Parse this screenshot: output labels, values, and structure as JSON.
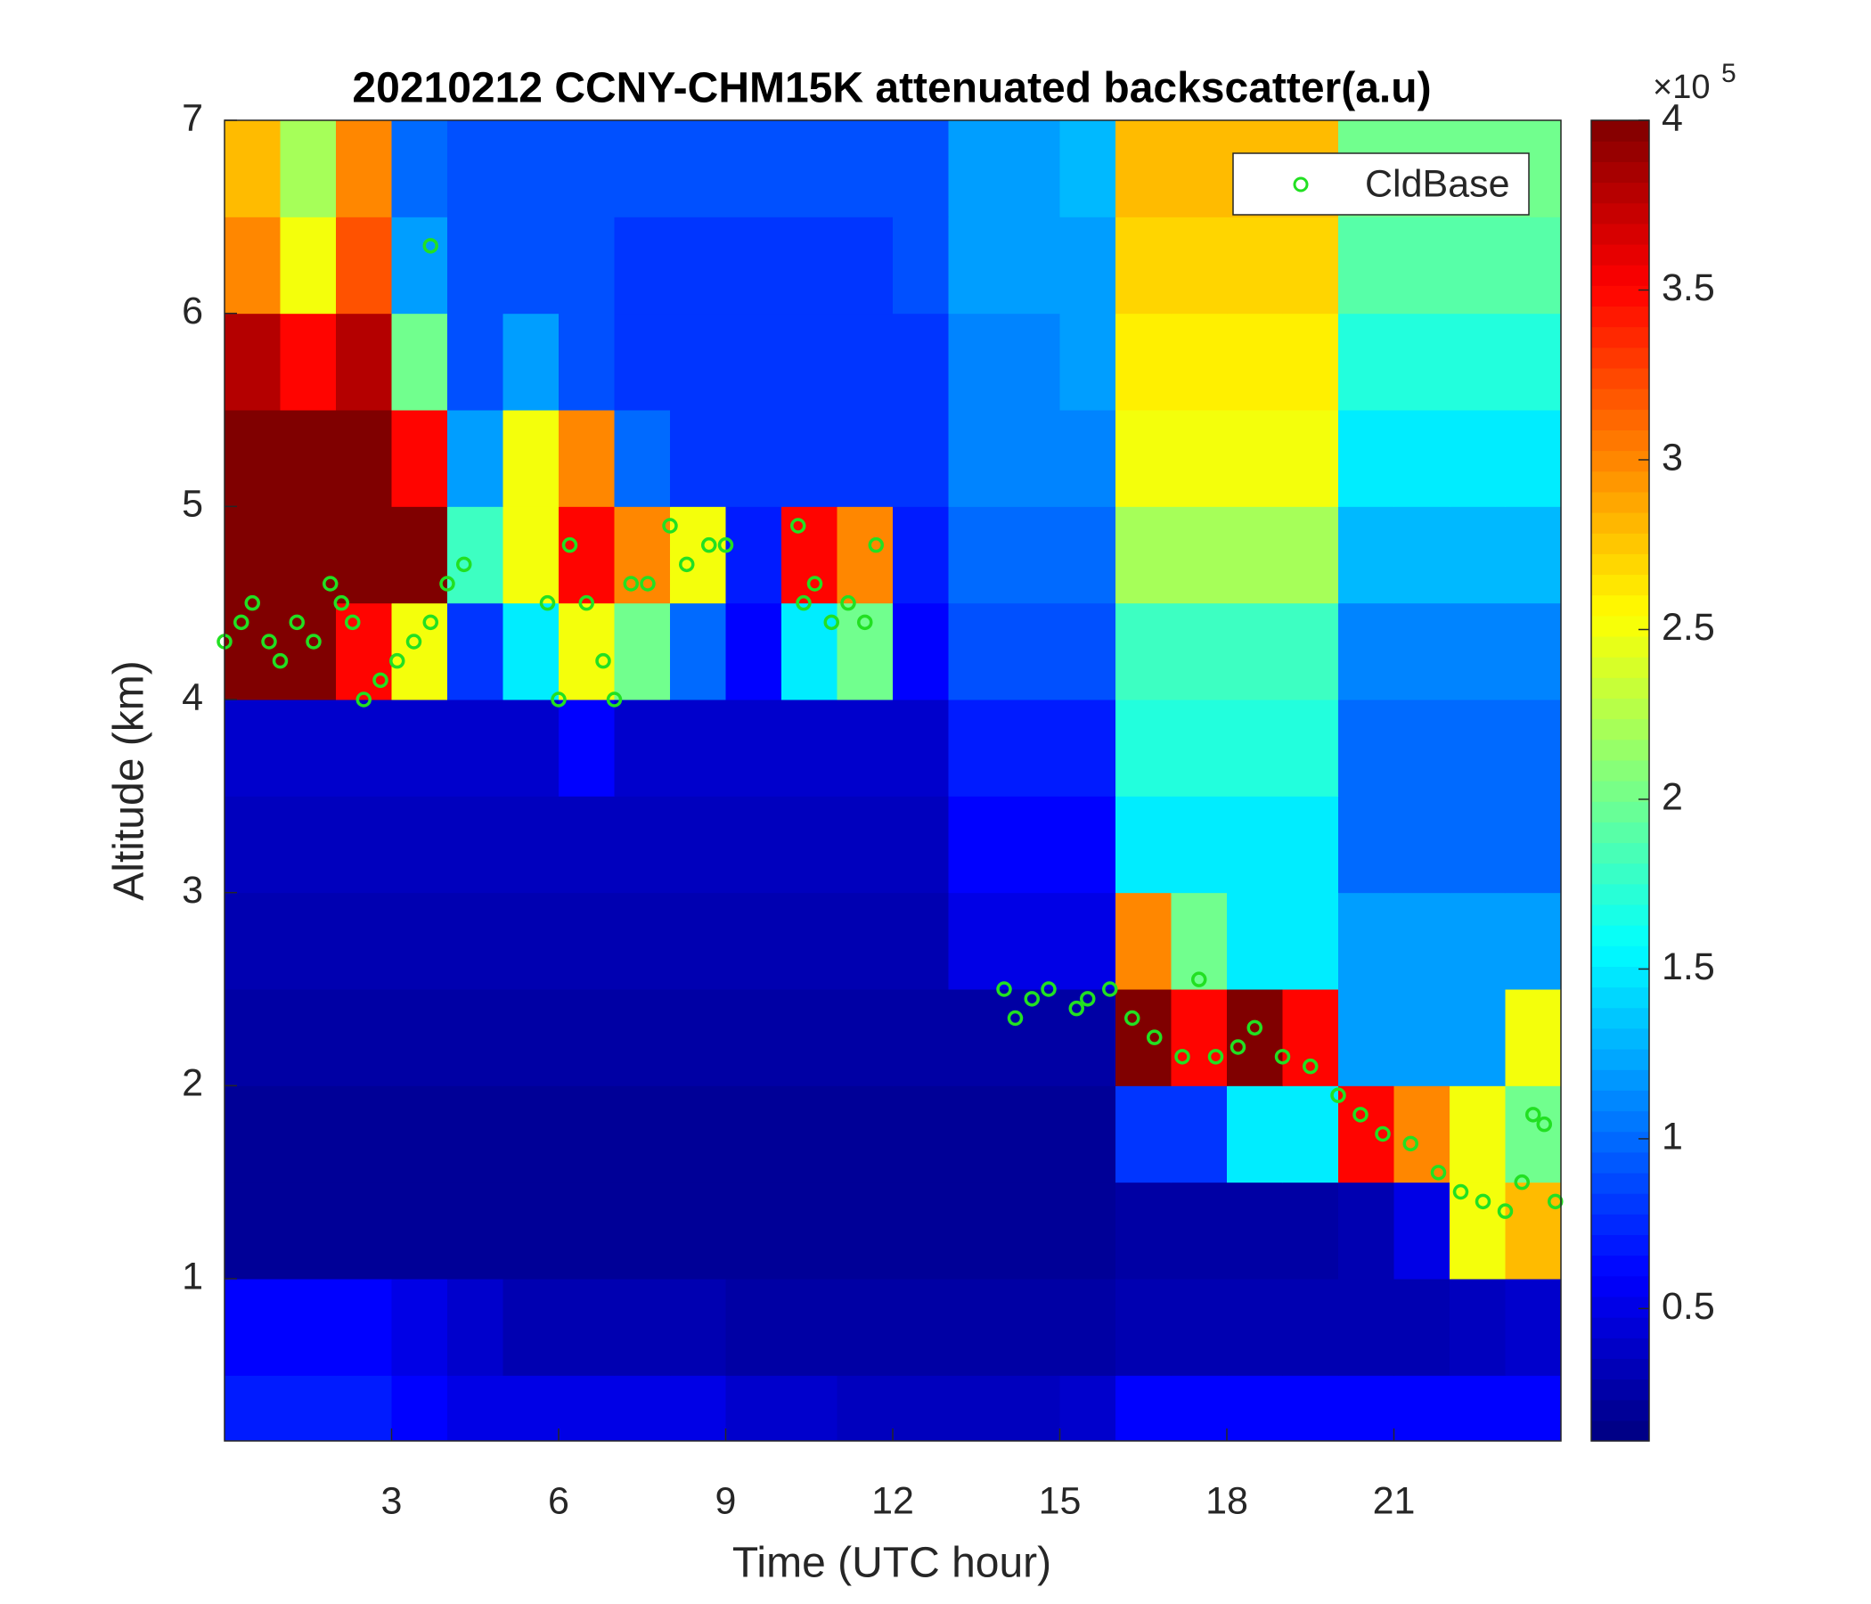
{
  "chart_data": {
    "type": "heatmap",
    "title": "20210212 CCNY-CHM15K attenuated backscatter(a.u)",
    "x_label": "Time (UTC hour)",
    "y_label": "Altitude (km)",
    "xlim": [
      0,
      24
    ],
    "ylim": [
      0.16,
      7
    ],
    "xticks": [
      3,
      6,
      9,
      12,
      15,
      18,
      21
    ],
    "yticks": [
      1,
      2,
      3,
      4,
      5,
      6,
      7
    ],
    "colormap": "jet",
    "clim": [
      0.11,
      4
    ],
    "cticks": [
      0.5,
      1,
      1.5,
      2,
      2.5,
      3,
      3.5,
      4
    ],
    "colorbar_multiplier": "×10",
    "colorbar_exponent": "5",
    "legend_position": "upper right",
    "x_edges": [
      0,
      1,
      2,
      3,
      4,
      5,
      6,
      7,
      8,
      9,
      10,
      11,
      12,
      13,
      14,
      15,
      16,
      17,
      18,
      19,
      20,
      21,
      22,
      23,
      24
    ],
    "y_edges": [
      0.16,
      0.5,
      1,
      1.5,
      2,
      2.5,
      3,
      3.5,
      4,
      4.5,
      5,
      5.5,
      6,
      6.5,
      7
    ],
    "z": [
      [
        0.7,
        0.7,
        0.7,
        0.6,
        0.5,
        0.5,
        0.5,
        0.5,
        0.5,
        0.4,
        0.4,
        0.35,
        0.35,
        0.35,
        0.35,
        0.4,
        0.6,
        0.6,
        0.6,
        0.6,
        0.6,
        0.6,
        0.6,
        0.6
      ],
      [
        0.6,
        0.6,
        0.6,
        0.5,
        0.4,
        0.3,
        0.3,
        0.3,
        0.3,
        0.25,
        0.25,
        0.25,
        0.25,
        0.25,
        0.25,
        0.25,
        0.3,
        0.3,
        0.3,
        0.3,
        0.3,
        0.3,
        0.35,
        0.4
      ],
      [
        0.2,
        0.2,
        0.2,
        0.2,
        0.2,
        0.2,
        0.2,
        0.2,
        0.2,
        0.2,
        0.2,
        0.2,
        0.2,
        0.2,
        0.2,
        0.2,
        0.25,
        0.25,
        0.25,
        0.25,
        0.3,
        0.5,
        2.5,
        2.8
      ],
      [
        0.2,
        0.2,
        0.2,
        0.2,
        0.2,
        0.2,
        0.2,
        0.2,
        0.2,
        0.2,
        0.2,
        0.2,
        0.2,
        0.2,
        0.2,
        0.2,
        0.8,
        0.8,
        1.5,
        1.5,
        3.5,
        3.0,
        2.5,
        2.0
      ],
      [
        0.25,
        0.25,
        0.25,
        0.25,
        0.25,
        0.25,
        0.25,
        0.25,
        0.25,
        0.25,
        0.25,
        0.25,
        0.25,
        0.25,
        0.25,
        0.25,
        4,
        3.5,
        4,
        3.5,
        1.2,
        1.2,
        1.2,
        2.5
      ],
      [
        0.3,
        0.3,
        0.3,
        0.3,
        0.3,
        0.3,
        0.3,
        0.3,
        0.3,
        0.3,
        0.3,
        0.3,
        0.3,
        0.5,
        0.5,
        0.5,
        3,
        2,
        1.5,
        1.5,
        1.2,
        1.2,
        1.2,
        1.2
      ],
      [
        0.35,
        0.35,
        0.35,
        0.35,
        0.35,
        0.35,
        0.35,
        0.35,
        0.35,
        0.35,
        0.35,
        0.35,
        0.35,
        0.6,
        0.6,
        0.6,
        1.5,
        1.5,
        1.5,
        1.5,
        1.0,
        1.0,
        1.0,
        1.0
      ],
      [
        0.4,
        0.4,
        0.4,
        0.4,
        0.4,
        0.4,
        0.6,
        0.4,
        0.4,
        0.4,
        0.4,
        0.4,
        0.4,
        0.7,
        0.7,
        0.7,
        1.7,
        1.7,
        1.7,
        1.7,
        1.0,
        1.0,
        1.0,
        1.0
      ],
      [
        4,
        4,
        3.5,
        2.5,
        0.8,
        1.5,
        2.5,
        2.0,
        1.0,
        0.6,
        1.5,
        2.0,
        0.6,
        0.9,
        0.9,
        0.9,
        1.8,
        1.8,
        1.8,
        1.8,
        1.1,
        1.1,
        1.1,
        1.1
      ],
      [
        4,
        4,
        4,
        4,
        1.8,
        2.5,
        3.5,
        3.0,
        2.5,
        0.7,
        3.5,
        3.0,
        0.7,
        1.0,
        1.0,
        1.0,
        2.2,
        2.2,
        2.2,
        2.2,
        1.3,
        1.3,
        1.3,
        1.3
      ],
      [
        4,
        4,
        4,
        3.5,
        1.2,
        2.5,
        3.0,
        1.0,
        0.8,
        0.8,
        0.8,
        0.8,
        0.8,
        1.1,
        1.1,
        1.1,
        2.5,
        2.5,
        2.5,
        2.5,
        1.5,
        1.5,
        1.5,
        1.5
      ],
      [
        3.8,
        3.5,
        3.8,
        2.0,
        0.9,
        1.2,
        0.9,
        0.8,
        0.8,
        0.8,
        0.8,
        0.8,
        0.8,
        1.1,
        1.1,
        1.2,
        2.6,
        2.6,
        2.6,
        2.6,
        1.7,
        1.7,
        1.7,
        1.7
      ],
      [
        3.0,
        2.5,
        3.2,
        1.2,
        0.9,
        0.9,
        0.9,
        0.8,
        0.8,
        0.8,
        0.8,
        0.8,
        0.9,
        1.2,
        1.2,
        1.2,
        2.7,
        2.7,
        2.7,
        2.7,
        1.9,
        1.9,
        1.9,
        1.9
      ],
      [
        2.8,
        2.2,
        3.0,
        1.0,
        0.9,
        0.9,
        0.9,
        0.9,
        0.9,
        0.9,
        0.9,
        0.9,
        0.9,
        1.2,
        1.2,
        1.3,
        2.8,
        2.8,
        2.8,
        2.8,
        2.0,
        2.0,
        2.0,
        2.0
      ]
    ],
    "series": [
      {
        "name": "CldBase",
        "color": "#22e022",
        "marker": "circle",
        "x": [
          0.0,
          0.3,
          0.5,
          0.8,
          1.0,
          1.3,
          1.6,
          1.9,
          2.1,
          2.3,
          2.5,
          2.8,
          3.1,
          3.4,
          3.7,
          4.0,
          4.3,
          3.7,
          5.8,
          6.0,
          6.2,
          6.5,
          6.8,
          7.0,
          7.3,
          7.6,
          8.0,
          8.3,
          8.7,
          9.0,
          10.3,
          10.4,
          10.6,
          10.9,
          11.2,
          11.5,
          11.7,
          14.0,
          14.2,
          14.5,
          14.8,
          15.3,
          15.5,
          15.9,
          16.3,
          16.7,
          17.2,
          17.5,
          17.8,
          18.2,
          18.5,
          19.0,
          19.5,
          20.0,
          20.4,
          20.8,
          21.3,
          21.8,
          22.2,
          22.6,
          23.0,
          23.3,
          23.5,
          23.7,
          23.9
        ],
        "values": [
          4.3,
          4.4,
          4.5,
          4.3,
          4.2,
          4.4,
          4.3,
          4.6,
          4.5,
          4.4,
          4.0,
          4.1,
          4.2,
          4.3,
          4.4,
          4.6,
          4.7,
          6.35,
          4.5,
          4.0,
          4.8,
          4.5,
          4.2,
          4.0,
          4.6,
          4.6,
          4.9,
          4.7,
          4.8,
          4.8,
          4.9,
          4.5,
          4.6,
          4.4,
          4.5,
          4.4,
          4.8,
          2.5,
          2.35,
          2.45,
          2.5,
          2.4,
          2.45,
          2.5,
          2.35,
          2.25,
          2.15,
          2.55,
          2.15,
          2.2,
          2.3,
          2.15,
          2.1,
          1.95,
          1.85,
          1.75,
          1.7,
          1.55,
          1.45,
          1.4,
          1.35,
          1.5,
          1.85,
          1.8,
          1.4
        ]
      }
    ]
  }
}
